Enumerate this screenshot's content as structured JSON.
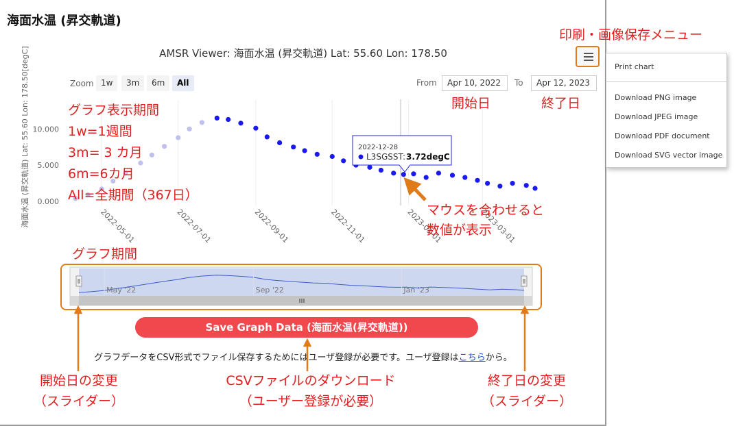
{
  "page_title": "海面水温 (昇交軌道)",
  "chart": {
    "title": "AMSR Viewer: 海面水温 (昇交軌道) Lat: 55.60 Lon: 178.50",
    "zoom_label": "Zoom",
    "zoom_buttons": [
      "1w",
      "3m",
      "6m",
      "All"
    ],
    "zoom_active": "All",
    "from_label": "From",
    "from_value": "Apr 10, 2022",
    "to_label": "To",
    "to_value": "Apr 12, 2023",
    "y_axis_label": "海面水温 (昇交軌道) Lat: 55.60 Lon: 178.50[degC]",
    "y_ticks": [
      "10.000",
      "5.000",
      "0.000"
    ],
    "x_ticks": [
      "2022-05-01",
      "2022-07-01",
      "2022-09-01",
      "2022-11-01",
      "2023-01-01",
      "2023-03-01"
    ],
    "tooltip": {
      "date": "2022-12-28",
      "series": "L3SGSST",
      "value": "3.72degC"
    },
    "navigator_labels": [
      "May '22",
      "Sep '22",
      "Jan '23"
    ],
    "series_color": "#1a1aee",
    "faded_color": "#c0c0ee"
  },
  "chart_data": {
    "type": "scatter",
    "x_type": "date",
    "xlim": [
      "2022-04-10",
      "2023-04-12"
    ],
    "ylim": [
      0,
      14
    ],
    "series": [
      {
        "name": "L3SGSST",
        "points": [
          [
            "2022-04-10",
            0.4
          ],
          [
            "2022-04-20",
            0.9
          ],
          [
            "2022-05-01",
            1.7
          ],
          [
            "2022-05-10",
            2.8
          ],
          [
            "2022-05-20",
            3.9
          ],
          [
            "2022-06-01",
            5.3
          ],
          [
            "2022-06-10",
            6.4
          ],
          [
            "2022-06-20",
            7.6
          ],
          [
            "2022-07-01",
            8.8
          ],
          [
            "2022-07-10",
            10.0
          ],
          [
            "2022-07-20",
            10.9
          ],
          [
            "2022-08-01",
            11.5
          ],
          [
            "2022-08-10",
            11.3
          ],
          [
            "2022-08-20",
            10.8
          ],
          [
            "2022-09-01",
            10.1
          ],
          [
            "2022-09-10",
            8.9
          ],
          [
            "2022-09-20",
            8.1
          ],
          [
            "2022-10-01",
            7.5
          ],
          [
            "2022-10-10",
            7.0
          ],
          [
            "2022-10-20",
            6.5
          ],
          [
            "2022-11-01",
            6.2
          ],
          [
            "2022-11-10",
            5.6
          ],
          [
            "2022-11-20",
            5.0
          ],
          [
            "2022-12-01",
            4.7
          ],
          [
            "2022-12-10",
            4.3
          ],
          [
            "2022-12-20",
            3.9
          ],
          [
            "2022-12-28",
            3.72
          ],
          [
            "2023-01-05",
            3.8
          ],
          [
            "2023-01-15",
            3.3
          ],
          [
            "2023-01-25",
            3.9
          ],
          [
            "2023-02-05",
            3.6
          ],
          [
            "2023-02-15",
            3.3
          ],
          [
            "2023-02-25",
            2.9
          ],
          [
            "2023-03-05",
            2.5
          ],
          [
            "2023-03-15",
            2.1
          ],
          [
            "2023-03-25",
            2.5
          ],
          [
            "2023-04-05",
            2.2
          ],
          [
            "2023-04-12",
            1.8
          ]
        ]
      }
    ]
  },
  "export_menu": {
    "items": [
      "Print chart",
      "Download PNG image",
      "Download JPEG image",
      "Download PDF document",
      "Download SVG vector image"
    ]
  },
  "save_button": "Save Graph Data (海面水温(昇交軌道))",
  "notice": {
    "before": "グラフデータをCSV形式でファイル保存するためにはユーザ登録が必要です。ユーザ登録は",
    "link": "こちら",
    "after": "から。"
  },
  "annotations": {
    "menu": "印刷・画像保存メニュー",
    "period_title": "グラフ表示期間",
    "period_lines": [
      "1w=1週間",
      "3m= 3 カ月",
      "6m=6カ月",
      "All=全期間（367日）"
    ],
    "start_date": "開始日",
    "end_date": "終了日",
    "hover": [
      "マウスを合わせると",
      "数値が表示"
    ],
    "graph_period": "グラフ期間",
    "start_slider": [
      "開始日の変更",
      "（スライダー）"
    ],
    "csv": [
      "CSVファイルのダウンロード",
      "（ユーザー登録が必要）"
    ],
    "end_slider": [
      "終了日の変更",
      "（スライダー）"
    ]
  },
  "colors": {
    "annotation_red": "#e02020",
    "annotation_orange": "#e07b1a",
    "save_button": "#f0484d"
  }
}
